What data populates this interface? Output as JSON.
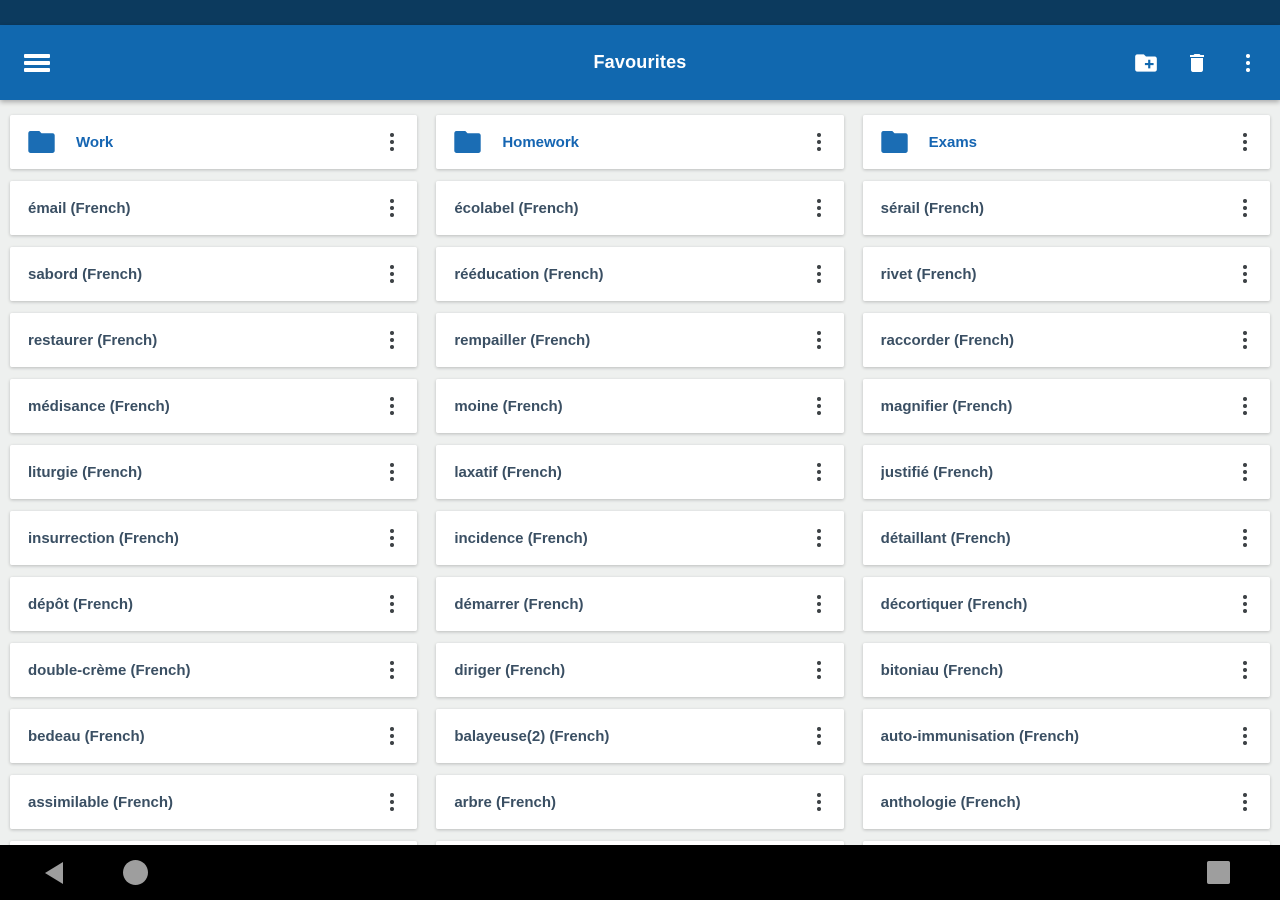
{
  "app_bar": {
    "title": "Favourites",
    "menu_icon": "hamburger-menu-icon",
    "actions": [
      {
        "icon": "create-folder-icon"
      },
      {
        "icon": "delete-icon"
      },
      {
        "icon": "overflow-menu-icon"
      }
    ]
  },
  "columns": [
    {
      "folder": "Work",
      "items": [
        "émail (French)",
        "sabord (French)",
        "restaurer (French)",
        "médisance (French)",
        "liturgie (French)",
        "insurrection (French)",
        "dépôt (French)",
        "double-crème (French)",
        "bedeau (French)",
        "assimilable (French)"
      ]
    },
    {
      "folder": "Homework",
      "items": [
        "écolabel (French)",
        "rééducation (French)",
        "rempailler (French)",
        "moine (French)",
        "laxatif (French)",
        "incidence (French)",
        "démarrer (French)",
        "diriger (French)",
        "balayeuse(2) (French)",
        "arbre (French)"
      ]
    },
    {
      "folder": "Exams",
      "items": [
        "sérail (French)",
        "rivet (French)",
        "raccorder (French)",
        "magnifier (French)",
        "justifié (French)",
        "détaillant (French)",
        "décortiquer (French)",
        "bitoniau (French)",
        "auto-immunisation (French)",
        "anthologie (French)"
      ]
    }
  ],
  "nav_bar": {
    "buttons": [
      {
        "icon": "back-icon"
      },
      {
        "icon": "home-icon"
      },
      {
        "icon": "recents-icon"
      }
    ]
  },
  "colors": {
    "status_bar": "#0c3a5e",
    "app_bar": "#1168af",
    "folder_icon": "#1b6db4",
    "folder_label": "#1565b2",
    "word_text": "#3a4f63",
    "content_background": "#eef0ef",
    "card_background": "#ffffff",
    "nav_icon": "#9e9e9e",
    "nav_bar": "#000000"
  }
}
